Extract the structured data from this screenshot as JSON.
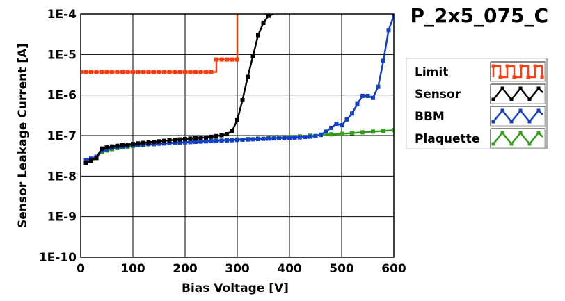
{
  "chart_data": {
    "type": "line",
    "title": "P_2x5_075_C",
    "xlabel": "Bias Voltage [V]",
    "ylabel": "Sensor Leakage Current [A]",
    "xlim": [
      0,
      600
    ],
    "ylim": [
      1e-10,
      0.0001
    ],
    "y_scale": "log",
    "grid": true,
    "legend_position": "right",
    "x_ticks": [
      0,
      100,
      200,
      300,
      400,
      500,
      600
    ],
    "x_tick_labels": [
      "0",
      "100",
      "200",
      "300",
      "400",
      "500",
      "600"
    ],
    "y_ticks": [
      0.0001,
      1e-05,
      1e-06,
      1e-07,
      1e-08,
      1e-09,
      1e-10
    ],
    "y_tick_labels": [
      "1E-4",
      "1E-5",
      "1E-6",
      "1E-7",
      "1E-8",
      "1E-9",
      "1E-10"
    ],
    "series": [
      {
        "name": "Limit",
        "color": "#ff3c10",
        "marker": "square",
        "step": true,
        "points": [
          [
            0,
            3.7e-06
          ],
          [
            10,
            3.7e-06
          ],
          [
            20,
            3.7e-06
          ],
          [
            30,
            3.7e-06
          ],
          [
            40,
            3.7e-06
          ],
          [
            50,
            3.7e-06
          ],
          [
            60,
            3.7e-06
          ],
          [
            70,
            3.7e-06
          ],
          [
            80,
            3.7e-06
          ],
          [
            90,
            3.7e-06
          ],
          [
            100,
            3.7e-06
          ],
          [
            110,
            3.7e-06
          ],
          [
            120,
            3.7e-06
          ],
          [
            130,
            3.7e-06
          ],
          [
            140,
            3.7e-06
          ],
          [
            150,
            3.7e-06
          ],
          [
            160,
            3.7e-06
          ],
          [
            170,
            3.7e-06
          ],
          [
            180,
            3.7e-06
          ],
          [
            190,
            3.7e-06
          ],
          [
            200,
            3.7e-06
          ],
          [
            210,
            3.7e-06
          ],
          [
            220,
            3.7e-06
          ],
          [
            230,
            3.7e-06
          ],
          [
            240,
            3.7e-06
          ],
          [
            250,
            3.7e-06
          ],
          [
            260,
            7.5e-06
          ],
          [
            270,
            7.5e-06
          ],
          [
            280,
            7.5e-06
          ],
          [
            290,
            7.5e-06
          ],
          [
            300,
            7.5e-06
          ],
          [
            300,
            0.0001
          ]
        ]
      },
      {
        "name": "Sensor",
        "color": "#000000",
        "marker": "square",
        "points": [
          [
            10,
            2.1e-08
          ],
          [
            20,
            2.4e-08
          ],
          [
            30,
            2.8e-08
          ],
          [
            40,
            4.8e-08
          ],
          [
            50,
            5.1e-08
          ],
          [
            60,
            5.4e-08
          ],
          [
            70,
            5.6e-08
          ],
          [
            80,
            5.8e-08
          ],
          [
            90,
            6e-08
          ],
          [
            100,
            6.2e-08
          ],
          [
            110,
            6.4e-08
          ],
          [
            120,
            6.6e-08
          ],
          [
            130,
            6.8e-08
          ],
          [
            140,
            7e-08
          ],
          [
            150,
            7.2e-08
          ],
          [
            160,
            7.4e-08
          ],
          [
            170,
            7.6e-08
          ],
          [
            180,
            7.8e-08
          ],
          [
            190,
            8e-08
          ],
          [
            200,
            8.2e-08
          ],
          [
            210,
            8.4e-08
          ],
          [
            220,
            8.6e-08
          ],
          [
            230,
            8.8e-08
          ],
          [
            240,
            9e-08
          ],
          [
            250,
            9.3e-08
          ],
          [
            260,
            9.7e-08
          ],
          [
            270,
            1.02e-07
          ],
          [
            280,
            1.08e-07
          ],
          [
            290,
            1.3e-07
          ],
          [
            300,
            2.4e-07
          ],
          [
            310,
            7.5e-07
          ],
          [
            320,
            2.8e-06
          ],
          [
            330,
            9e-06
          ],
          [
            340,
            3e-05
          ],
          [
            350,
            6e-05
          ],
          [
            360,
            9e-05
          ],
          [
            370,
            0.0001
          ]
        ]
      },
      {
        "name": "BBM",
        "color": "#1440c8",
        "marker": "square",
        "points": [
          [
            10,
            2.5e-08
          ],
          [
            20,
            2.7e-08
          ],
          [
            30,
            3e-08
          ],
          [
            40,
            4.2e-08
          ],
          [
            50,
            4.6e-08
          ],
          [
            60,
            5e-08
          ],
          [
            70,
            5.2e-08
          ],
          [
            80,
            5.4e-08
          ],
          [
            90,
            5.6e-08
          ],
          [
            100,
            5.8e-08
          ],
          [
            110,
            5.9e-08
          ],
          [
            120,
            6e-08
          ],
          [
            130,
            6.1e-08
          ],
          [
            140,
            6.2e-08
          ],
          [
            150,
            6.3e-08
          ],
          [
            160,
            6.4e-08
          ],
          [
            170,
            6.5e-08
          ],
          [
            180,
            6.6e-08
          ],
          [
            190,
            6.7e-08
          ],
          [
            200,
            6.8e-08
          ],
          [
            210,
            6.9e-08
          ],
          [
            220,
            7e-08
          ],
          [
            230,
            7.1e-08
          ],
          [
            240,
            7.2e-08
          ],
          [
            250,
            7.3e-08
          ],
          [
            260,
            7.4e-08
          ],
          [
            270,
            7.5e-08
          ],
          [
            280,
            7.6e-08
          ],
          [
            290,
            7.7e-08
          ],
          [
            300,
            7.8e-08
          ],
          [
            310,
            7.9e-08
          ],
          [
            320,
            8e-08
          ],
          [
            330,
            8.1e-08
          ],
          [
            340,
            8.2e-08
          ],
          [
            350,
            8.3e-08
          ],
          [
            360,
            8.4e-08
          ],
          [
            370,
            8.5e-08
          ],
          [
            380,
            8.6e-08
          ],
          [
            390,
            8.7e-08
          ],
          [
            400,
            8.8e-08
          ],
          [
            410,
            8.9e-08
          ],
          [
            420,
            9e-08
          ],
          [
            430,
            9.2e-08
          ],
          [
            440,
            9.4e-08
          ],
          [
            450,
            9.7e-08
          ],
          [
            460,
            1.05e-07
          ],
          [
            470,
            1.25e-07
          ],
          [
            480,
            1.55e-07
          ],
          [
            490,
            1.95e-07
          ],
          [
            500,
            1.8e-07
          ],
          [
            510,
            2.5e-07
          ],
          [
            520,
            3.5e-07
          ],
          [
            530,
            6e-07
          ],
          [
            540,
            9.5e-07
          ],
          [
            550,
            9.5e-07
          ],
          [
            560,
            8.5e-07
          ],
          [
            570,
            1.6e-06
          ],
          [
            580,
            7e-06
          ],
          [
            590,
            4e-05
          ],
          [
            600,
            9e-05
          ]
        ]
      },
      {
        "name": "Plaquette",
        "color": "#30a018",
        "marker": "square",
        "points": [
          [
            10,
            2.3e-08
          ],
          [
            20,
            2.5e-08
          ],
          [
            30,
            2.8e-08
          ],
          [
            40,
            3.9e-08
          ],
          [
            50,
            4.3e-08
          ],
          [
            60,
            4.6e-08
          ],
          [
            70,
            4.9e-08
          ],
          [
            80,
            5.1e-08
          ],
          [
            90,
            5.3e-08
          ],
          [
            100,
            5.5e-08
          ],
          [
            120,
            5.8e-08
          ],
          [
            140,
            6.1e-08
          ],
          [
            160,
            6.4e-08
          ],
          [
            180,
            6.7e-08
          ],
          [
            200,
            6.9e-08
          ],
          [
            220,
            7.2e-08
          ],
          [
            240,
            7.4e-08
          ],
          [
            260,
            7.6e-08
          ],
          [
            280,
            7.8e-08
          ],
          [
            300,
            8e-08
          ],
          [
            320,
            8.2e-08
          ],
          [
            340,
            8.4e-08
          ],
          [
            360,
            8.6e-08
          ],
          [
            380,
            8.9e-08
          ],
          [
            400,
            9.2e-08
          ],
          [
            420,
            9.5e-08
          ],
          [
            440,
            9.9e-08
          ],
          [
            460,
            1.03e-07
          ],
          [
            480,
            1.07e-07
          ],
          [
            500,
            1.1e-07
          ],
          [
            520,
            1.15e-07
          ],
          [
            540,
            1.2e-07
          ],
          [
            560,
            1.25e-07
          ],
          [
            580,
            1.3e-07
          ],
          [
            600,
            1.36e-07
          ]
        ]
      }
    ]
  }
}
